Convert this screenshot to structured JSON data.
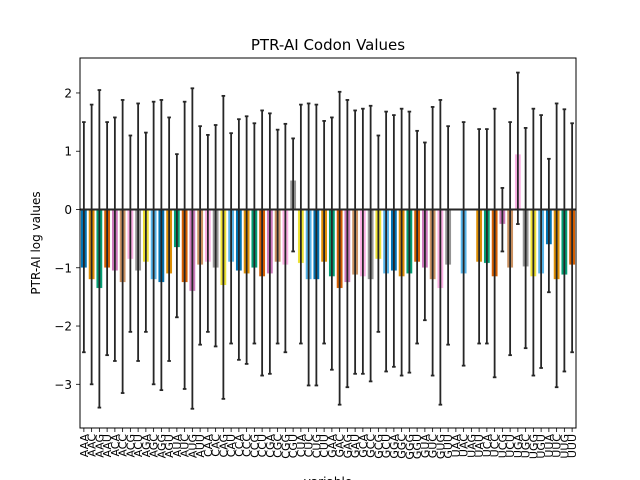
{
  "chart_data": {
    "type": "bar",
    "title": "PTR-AI Codon Values",
    "xlabel": "variable",
    "ylabel": "PTR-AI log values",
    "ylim": [
      -3.75,
      2.6
    ],
    "yticks": [
      -3,
      -2,
      -1,
      0,
      1,
      2
    ],
    "grid": false,
    "legend": "none",
    "palette": [
      "#0173b2",
      "#de8f05",
      "#029e73",
      "#d55e00",
      "#cc78bc",
      "#ca9161",
      "#fbafe4",
      "#949494",
      "#ece133",
      "#56b4e9"
    ],
    "axis_color": "#000000",
    "errorbar_color": "#262626",
    "categories": [
      "AAA",
      "AAC",
      "AAG",
      "AAU",
      "ACA",
      "ACC",
      "ACG",
      "ACU",
      "AGA",
      "AGC",
      "AGG",
      "AGU",
      "AUA",
      "AUC",
      "AUG",
      "AUU",
      "CAA",
      "CAC",
      "CAG",
      "CAU",
      "CCA",
      "CCC",
      "CCG",
      "CCU",
      "CGA",
      "CGC",
      "CGG",
      "CGU",
      "CUA",
      "CUC",
      "CUG",
      "CUU",
      "GAA",
      "GAC",
      "GAG",
      "GAU",
      "GCA",
      "GCC",
      "GCG",
      "GCU",
      "GGA",
      "GGC",
      "GGG",
      "GGU",
      "GUA",
      "GUC",
      "GUG",
      "GUU",
      "UAA",
      "UAC",
      "UAG",
      "UAU",
      "UCA",
      "UCC",
      "UCG",
      "UCU",
      "UGA",
      "UGC",
      "UGG",
      "UGU",
      "UUA",
      "UUC",
      "UUG",
      "UUU"
    ],
    "values": [
      -1.0,
      -1.2,
      -1.35,
      -1.0,
      -1.05,
      -1.25,
      -0.85,
      -1.05,
      -0.9,
      -1.2,
      -1.25,
      -1.1,
      -0.65,
      -1.25,
      -1.4,
      -0.95,
      -0.9,
      -1.0,
      -1.3,
      -0.9,
      -1.05,
      -1.1,
      -1.0,
      -1.15,
      -1.1,
      -0.9,
      -0.95,
      0.5,
      -0.92,
      -1.2,
      -1.2,
      -0.9,
      -1.15,
      -1.35,
      -1.25,
      -1.12,
      -1.15,
      -1.2,
      -0.85,
      -1.1,
      -1.05,
      -1.15,
      -1.1,
      -0.9,
      -1.0,
      -1.2,
      -1.35,
      -0.95,
      0.0,
      -1.1,
      0.0,
      -0.9,
      -0.92,
      -1.15,
      -0.25,
      -1.0,
      0.95,
      -0.98,
      -1.15,
      -1.1,
      -0.6,
      -1.2,
      -1.12,
      -0.95
    ],
    "error_upper": [
      1.5,
      1.8,
      2.05,
      1.5,
      1.58,
      1.88,
      1.27,
      1.82,
      1.32,
      1.85,
      1.88,
      1.58,
      0.95,
      1.85,
      2.08,
      1.43,
      1.28,
      1.45,
      1.95,
      1.31,
      1.55,
      1.6,
      1.48,
      1.7,
      1.65,
      1.37,
      1.47,
      1.22,
      1.8,
      1.82,
      1.8,
      1.52,
      1.58,
      2.02,
      1.88,
      1.7,
      1.73,
      1.78,
      1.27,
      1.68,
      1.62,
      1.73,
      1.68,
      1.35,
      1.15,
      1.76,
      1.88,
      1.43,
      0.0,
      1.5,
      0.0,
      1.38,
      1.38,
      1.73,
      0.37,
      1.5,
      2.35,
      1.4,
      1.73,
      1.62,
      0.87,
      1.82,
      1.72,
      1.48
    ],
    "error_lower": [
      -2.45,
      -3.0,
      -3.4,
      -2.5,
      -2.6,
      -3.15,
      -2.1,
      -2.6,
      -2.1,
      -3.0,
      -3.1,
      -2.6,
      -1.85,
      -3.08,
      -3.42,
      -2.32,
      -2.1,
      -2.35,
      -3.25,
      -2.3,
      -2.58,
      -2.65,
      -2.3,
      -2.85,
      -2.82,
      -2.3,
      -2.45,
      -0.72,
      -2.3,
      -3.02,
      -3.02,
      -2.3,
      -2.75,
      -3.35,
      -3.05,
      -2.82,
      -2.82,
      -2.95,
      -2.1,
      -2.78,
      -2.7,
      -2.85,
      -2.8,
      -2.3,
      -1.9,
      -2.85,
      -3.35,
      -2.32,
      0.0,
      -2.68,
      0.0,
      -2.3,
      -2.3,
      -2.88,
      -0.72,
      -2.5,
      -0.25,
      -2.38,
      -2.85,
      -2.72,
      -1.42,
      -3.05,
      -2.78,
      -2.45
    ]
  }
}
